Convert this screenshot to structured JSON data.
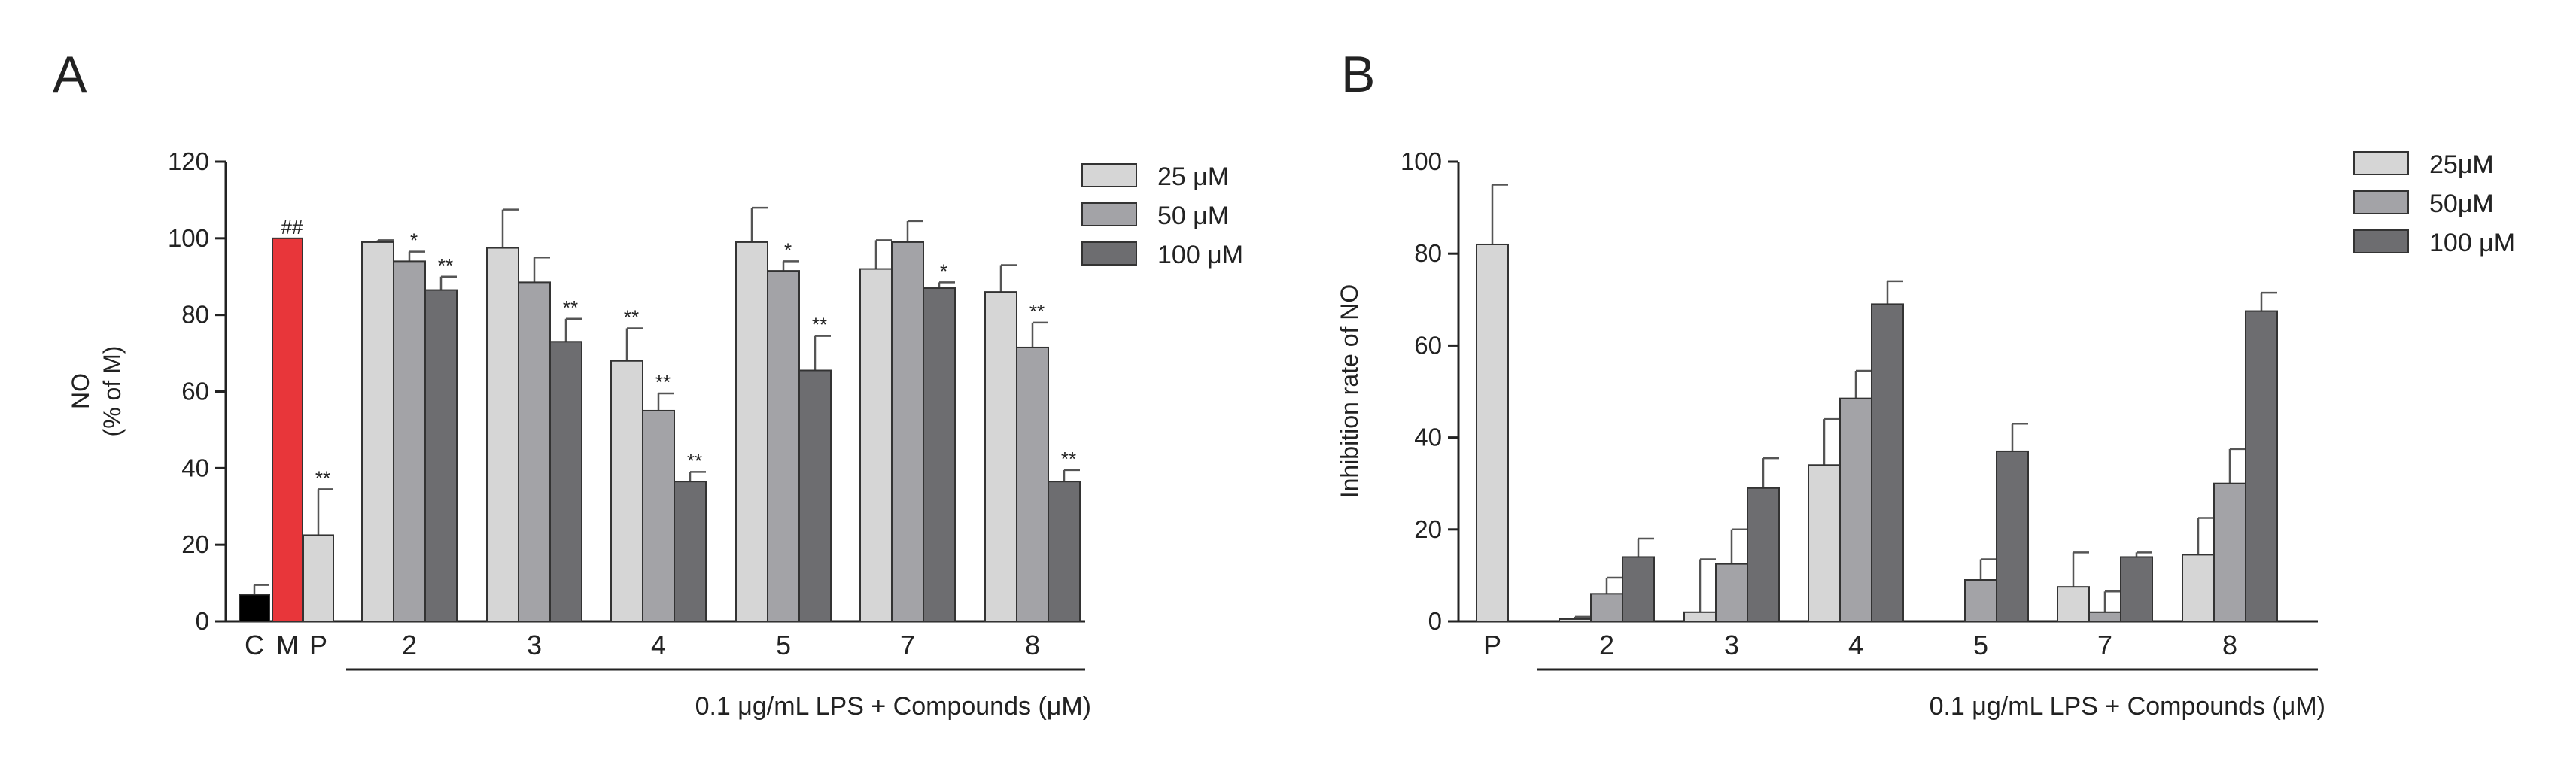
{
  "colors": {
    "c25": "#d6d6d6",
    "c50": "#a3a3a7",
    "c100": "#6d6d70",
    "black": "#000000",
    "red": "#e8363a",
    "axis": "#222222"
  },
  "chart_data": [
    {
      "panel": "A",
      "type": "bar",
      "ylabel_line1": "NO",
      "ylabel_line2": "(% of M)",
      "ylim": [
        0,
        120
      ],
      "yticks": [
        0,
        20,
        40,
        60,
        80,
        100,
        120
      ],
      "xlabel": "0.1 μg/mL LPS + Compounds (μM)",
      "legend": [
        "25 μM",
        "50 μM",
        "100 μM"
      ],
      "controls": [
        {
          "label": "C",
          "value": 7,
          "err": 2.5,
          "color": "black",
          "mark": ""
        },
        {
          "label": "M",
          "value": 100,
          "err": 0,
          "color": "red",
          "mark": "##"
        },
        {
          "label": "P",
          "value": 22.5,
          "err": 12,
          "color": "c25",
          "mark": "**"
        }
      ],
      "groups": [
        {
          "label": "2",
          "values": [
            99,
            94,
            86.5
          ],
          "errs": [
            0.5,
            2.5,
            3.5
          ],
          "marks": [
            "",
            "*",
            "**"
          ]
        },
        {
          "label": "3",
          "values": [
            97.5,
            88.5,
            73
          ],
          "errs": [
            10,
            6.5,
            6
          ],
          "marks": [
            "",
            "",
            "**"
          ]
        },
        {
          "label": "4",
          "values": [
            68,
            55,
            36.5
          ],
          "errs": [
            8.5,
            4.5,
            2.5
          ],
          "marks": [
            "**",
            "**",
            "**"
          ]
        },
        {
          "label": "5",
          "values": [
            99,
            91.5,
            65.5
          ],
          "errs": [
            9,
            2.5,
            9
          ],
          "marks": [
            "",
            "*",
            "**"
          ]
        },
        {
          "label": "7",
          "values": [
            92,
            99,
            87
          ],
          "errs": [
            7.5,
            5.5,
            1.5
          ],
          "marks": [
            "",
            "",
            "*"
          ]
        },
        {
          "label": "8",
          "values": [
            86,
            71.5,
            36.5
          ],
          "errs": [
            7,
            6.5,
            3
          ],
          "marks": [
            "",
            "**",
            "**"
          ]
        }
      ]
    },
    {
      "panel": "B",
      "type": "bar",
      "ylabel": "Inhibition rate of NO",
      "ylim": [
        0,
        100
      ],
      "yticks": [
        0,
        20,
        40,
        60,
        80,
        100
      ],
      "xlabel": "0.1 μg/mL LPS + Compounds (μM)",
      "legend": [
        "25μM",
        "50μM",
        "100 μM"
      ],
      "controls": [
        {
          "label": "P",
          "value": 82,
          "err": 13,
          "color": "c25",
          "mark": ""
        }
      ],
      "groups": [
        {
          "label": "2",
          "values": [
            0.5,
            6,
            14
          ],
          "errs": [
            0.5,
            3.5,
            4
          ],
          "marks": [
            "",
            "",
            ""
          ]
        },
        {
          "label": "3",
          "values": [
            2,
            12.5,
            29
          ],
          "errs": [
            11.5,
            7.5,
            6.5
          ],
          "marks": [
            "",
            "",
            ""
          ]
        },
        {
          "label": "4",
          "values": [
            34,
            48.5,
            69
          ],
          "errs": [
            10,
            6,
            5
          ],
          "marks": [
            "",
            "",
            ""
          ]
        },
        {
          "label": "5",
          "values": [
            0,
            9,
            37
          ],
          "errs": [
            0,
            4.5,
            6
          ],
          "marks": [
            "",
            "",
            ""
          ]
        },
        {
          "label": "7",
          "values": [
            7.5,
            2,
            14
          ],
          "errs": [
            7.5,
            4.5,
            1
          ],
          "marks": [
            "",
            "",
            ""
          ]
        },
        {
          "label": "8",
          "values": [
            14.5,
            30,
            67.5
          ],
          "errs": [
            8,
            7.5,
            4
          ],
          "marks": [
            "",
            "",
            ""
          ]
        }
      ]
    }
  ]
}
